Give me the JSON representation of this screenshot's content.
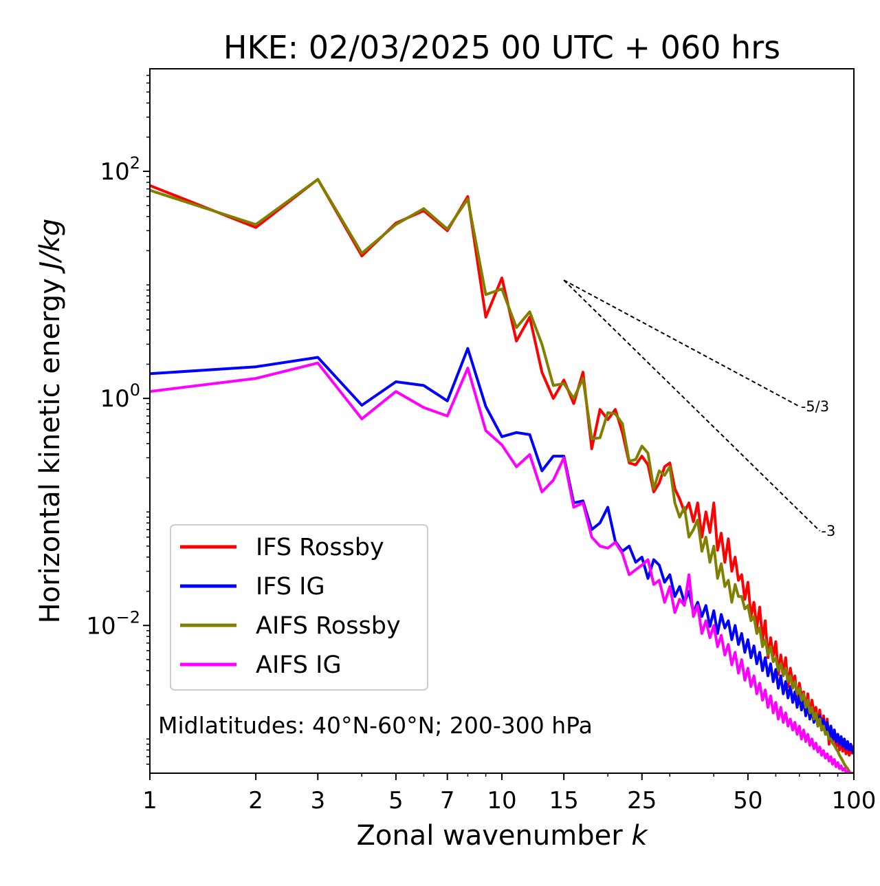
{
  "chart_data": {
    "type": "line",
    "title": "HKE: 02/03/2025 00 UTC + 060 hrs",
    "xlabel": "Zonal wavenumber k",
    "xlabel_main": "Zonal wavenumber ",
    "xlabel_var": "k",
    "ylabel": "Horizontal kinetic energy J/kg",
    "ylabel_main": "Horizontal kinetic energy ",
    "ylabel_unit": "J/kg",
    "xscale": "log",
    "yscale": "log",
    "xlim": [
      1,
      100
    ],
    "ylim": [
      0.0005,
      800
    ],
    "xticks": [
      1,
      2,
      3,
      5,
      7,
      10,
      15,
      25,
      50,
      100
    ],
    "xtick_labels": [
      "1",
      "2",
      "3",
      "5",
      "7",
      "10",
      "15",
      "25",
      "50",
      "100"
    ],
    "yticks": [
      {
        "value": 100,
        "base": "10",
        "exp": "2"
      },
      {
        "value": 1,
        "base": "10",
        "exp": "0"
      },
      {
        "value": 0.01,
        "base": "10",
        "exp": "−2"
      }
    ],
    "annotation": "Midlatitudes: 40°N-60°N; 200-300 hPa",
    "legend_position": "lower-left",
    "reference_lines": [
      {
        "label": "-5/3",
        "slope": -1.6667,
        "x0": 15,
        "y0": 11,
        "x1": 70,
        "y1": 0.85
      },
      {
        "label": "-3",
        "slope": -3,
        "x0": 15,
        "y0": 11,
        "x1": 80,
        "y1": 0.068
      }
    ],
    "series": [
      {
        "name": "IFS Rossby",
        "color": "#ff0000",
        "x": [
          1,
          2,
          3,
          4,
          5,
          6,
          7,
          8,
          9,
          10,
          11,
          12,
          13,
          14,
          15,
          16,
          17,
          18,
          19,
          20,
          21,
          22,
          23,
          24,
          25,
          26,
          27,
          28,
          29,
          30,
          31,
          32,
          33,
          34,
          35,
          36,
          37,
          38,
          39,
          40,
          41,
          42,
          43,
          44,
          45,
          46,
          47,
          48,
          49,
          50,
          51,
          52,
          53,
          54,
          55,
          56,
          57,
          58,
          59,
          60,
          61,
          62,
          63,
          64,
          65,
          66,
          67,
          68,
          69,
          70,
          71,
          72,
          73,
          74,
          75,
          76,
          77,
          78,
          79,
          80,
          81,
          82,
          83,
          84,
          85,
          86,
          87,
          88,
          89,
          90,
          91,
          92,
          93,
          94,
          95,
          96,
          97,
          98,
          99,
          100
        ],
        "y": [
          75,
          32,
          85,
          18,
          35,
          45,
          30,
          60,
          5.2,
          11.5,
          3.2,
          5.2,
          1.7,
          1.0,
          1.45,
          0.9,
          1.7,
          0.36,
          0.8,
          0.65,
          0.8,
          0.5,
          0.27,
          0.26,
          0.31,
          0.26,
          0.15,
          0.18,
          0.25,
          0.27,
          0.16,
          0.13,
          0.1,
          0.12,
          0.082,
          0.12,
          0.06,
          0.1,
          0.066,
          0.12,
          0.046,
          0.065,
          0.036,
          0.058,
          0.03,
          0.04,
          0.025,
          0.028,
          0.017,
          0.024,
          0.012,
          0.016,
          0.0095,
          0.0145,
          0.0075,
          0.011,
          0.0052,
          0.0078,
          0.0054,
          0.0072,
          0.0037,
          0.0055,
          0.0038,
          0.0052,
          0.0029,
          0.0042,
          0.0031,
          0.0036,
          0.0022,
          0.0031,
          0.0024,
          0.0026,
          0.0018,
          0.0025,
          0.0016,
          0.0022,
          0.0017,
          0.0019,
          0.0013,
          0.0018,
          0.0012,
          0.0016,
          0.0011,
          0.0015,
          0.0009,
          0.0013,
          0.00095,
          0.0012,
          0.00085,
          0.0011,
          0.0008,
          0.001,
          0.00078,
          0.00092,
          0.00074,
          0.00085,
          0.00072,
          0.0008,
          0.00075,
          0.00088
        ]
      },
      {
        "name": "IFS IG",
        "color": "#0000ff",
        "x": [
          1,
          2,
          3,
          4,
          5,
          6,
          7,
          8,
          9,
          10,
          11,
          12,
          13,
          14,
          15,
          16,
          17,
          18,
          19,
          20,
          21,
          22,
          23,
          24,
          25,
          26,
          27,
          28,
          29,
          30,
          31,
          32,
          33,
          34,
          35,
          36,
          37,
          38,
          39,
          40,
          41,
          42,
          43,
          44,
          45,
          46,
          47,
          48,
          49,
          50,
          51,
          52,
          53,
          54,
          55,
          56,
          57,
          58,
          59,
          60,
          61,
          62,
          63,
          64,
          65,
          66,
          67,
          68,
          69,
          70,
          71,
          72,
          73,
          74,
          75,
          76,
          77,
          78,
          79,
          80,
          81,
          82,
          83,
          84,
          85,
          86,
          87,
          88,
          89,
          90,
          91,
          92,
          93,
          94,
          95,
          96,
          97,
          98,
          99,
          100
        ],
        "y": [
          1.65,
          1.9,
          2.3,
          0.87,
          1.4,
          1.3,
          0.95,
          2.75,
          0.85,
          0.46,
          0.5,
          0.48,
          0.23,
          0.31,
          0.31,
          0.12,
          0.125,
          0.07,
          0.08,
          0.11,
          0.055,
          0.045,
          0.05,
          0.036,
          0.04,
          0.026,
          0.038,
          0.034,
          0.024,
          0.028,
          0.018,
          0.022,
          0.016,
          0.02,
          0.013,
          0.016,
          0.012,
          0.015,
          0.0098,
          0.0135,
          0.0085,
          0.0125,
          0.0095,
          0.011,
          0.0075,
          0.01,
          0.0068,
          0.0085,
          0.0058,
          0.0075,
          0.0052,
          0.0066,
          0.0046,
          0.0058,
          0.004,
          0.0052,
          0.0036,
          0.0046,
          0.0032,
          0.0041,
          0.0028,
          0.0036,
          0.0025,
          0.0032,
          0.0023,
          0.0029,
          0.0021,
          0.0026,
          0.0019,
          0.0024,
          0.0018,
          0.0022,
          0.0016,
          0.002,
          0.0015,
          0.0018,
          0.0014,
          0.0017,
          0.0013,
          0.0016,
          0.0012,
          0.0015,
          0.0011,
          0.0014,
          0.00105,
          0.0013,
          0.001,
          0.0012,
          0.00095,
          0.0011,
          0.0009,
          0.00105,
          0.00086,
          0.001,
          0.00082,
          0.00095,
          0.0008,
          0.0009,
          0.00078,
          0.00076
        ]
      },
      {
        "name": "AIFS Rossby",
        "color": "#808000",
        "x": [
          1,
          2,
          3,
          4,
          5,
          6,
          7,
          8,
          9,
          10,
          11,
          12,
          13,
          14,
          15,
          16,
          17,
          18,
          19,
          20,
          21,
          22,
          23,
          24,
          25,
          26,
          27,
          28,
          29,
          30,
          31,
          32,
          33,
          34,
          35,
          36,
          37,
          38,
          39,
          40,
          41,
          42,
          43,
          44,
          45,
          46,
          47,
          48,
          49,
          50,
          51,
          52,
          53,
          54,
          55,
          56,
          57,
          58,
          59,
          60,
          61,
          62,
          63,
          64,
          65,
          66,
          67,
          68,
          69,
          70,
          71,
          72,
          73,
          74,
          75,
          76,
          77,
          78,
          79,
          80,
          81,
          82,
          83,
          84,
          85,
          86,
          87,
          88,
          89,
          90,
          91,
          92,
          93,
          94,
          95,
          96,
          97,
          98,
          99,
          100
        ],
        "y": [
          68,
          34,
          85,
          19,
          34,
          47,
          31,
          57,
          8.2,
          9.2,
          4.2,
          5.8,
          3.0,
          1.3,
          1.35,
          1.0,
          1.5,
          0.44,
          0.45,
          0.75,
          0.73,
          0.6,
          0.28,
          0.29,
          0.38,
          0.33,
          0.16,
          0.23,
          0.21,
          0.25,
          0.12,
          0.09,
          0.11,
          0.06,
          0.07,
          0.085,
          0.045,
          0.06,
          0.036,
          0.05,
          0.026,
          0.035,
          0.022,
          0.025,
          0.016,
          0.023,
          0.018,
          0.018,
          0.014,
          0.015,
          0.011,
          0.012,
          0.0085,
          0.0095,
          0.0065,
          0.0075,
          0.0055,
          0.0065,
          0.0048,
          0.0052,
          0.004,
          0.0046,
          0.0036,
          0.0042,
          0.0032,
          0.0036,
          0.0028,
          0.0032,
          0.0025,
          0.0028,
          0.0022,
          0.0025,
          0.0019,
          0.0022,
          0.0017,
          0.0019,
          0.0015,
          0.0017,
          0.0013,
          0.0015,
          0.0012,
          0.0013,
          0.0011,
          0.00115,
          0.001,
          0.001,
          0.00092,
          0.00088,
          0.00082,
          0.00078,
          0.00072,
          0.00068,
          0.00064,
          0.0006,
          0.00057,
          0.00055,
          0.00052,
          0.0005,
          0.0005,
          0.0005
        ]
      },
      {
        "name": "AIFS IG",
        "color": "#ff00ff",
        "x": [
          1,
          2,
          3,
          4,
          5,
          6,
          7,
          8,
          9,
          10,
          11,
          12,
          13,
          14,
          15,
          16,
          17,
          18,
          19,
          20,
          21,
          22,
          23,
          24,
          25,
          26,
          27,
          28,
          29,
          30,
          31,
          32,
          33,
          34,
          35,
          36,
          37,
          38,
          39,
          40,
          41,
          42,
          43,
          44,
          45,
          46,
          47,
          48,
          49,
          50,
          51,
          52,
          53,
          54,
          55,
          56,
          57,
          58,
          59,
          60,
          61,
          62,
          63,
          64,
          65,
          66,
          67,
          68,
          69,
          70,
          71,
          72,
          73,
          74,
          75,
          76,
          77,
          78,
          79,
          80,
          81,
          82,
          83,
          84,
          85,
          86,
          87,
          88,
          89,
          90,
          91,
          92,
          93,
          94,
          95,
          96,
          97,
          98,
          99,
          100
        ],
        "y": [
          1.15,
          1.5,
          2.05,
          0.66,
          1.15,
          0.83,
          0.7,
          1.85,
          0.52,
          0.39,
          0.25,
          0.32,
          0.15,
          0.19,
          0.3,
          0.11,
          0.12,
          0.06,
          0.05,
          0.048,
          0.054,
          0.043,
          0.028,
          0.031,
          0.034,
          0.038,
          0.023,
          0.025,
          0.016,
          0.022,
          0.013,
          0.017,
          0.015,
          0.028,
          0.012,
          0.015,
          0.0085,
          0.011,
          0.0078,
          0.01,
          0.0065,
          0.0082,
          0.0055,
          0.0068,
          0.0045,
          0.0058,
          0.0038,
          0.005,
          0.0033,
          0.0042,
          0.0029,
          0.0036,
          0.0025,
          0.0031,
          0.0022,
          0.0027,
          0.0019,
          0.0024,
          0.0017,
          0.0021,
          0.0015,
          0.0019,
          0.0014,
          0.0017,
          0.0013,
          0.0015,
          0.0012,
          0.0014,
          0.0011,
          0.0013,
          0.001,
          0.0012,
          0.00095,
          0.0011,
          0.00088,
          0.001,
          0.00082,
          0.00092,
          0.00077,
          0.00085,
          0.00072,
          0.00079,
          0.00068,
          0.00074,
          0.00064,
          0.0007,
          0.0006,
          0.00066,
          0.00057,
          0.00062,
          0.00055,
          0.00058,
          0.00053,
          0.00055,
          0.00051,
          0.00052,
          0.0005,
          0.0005,
          0.0005,
          0.0005
        ]
      }
    ]
  }
}
